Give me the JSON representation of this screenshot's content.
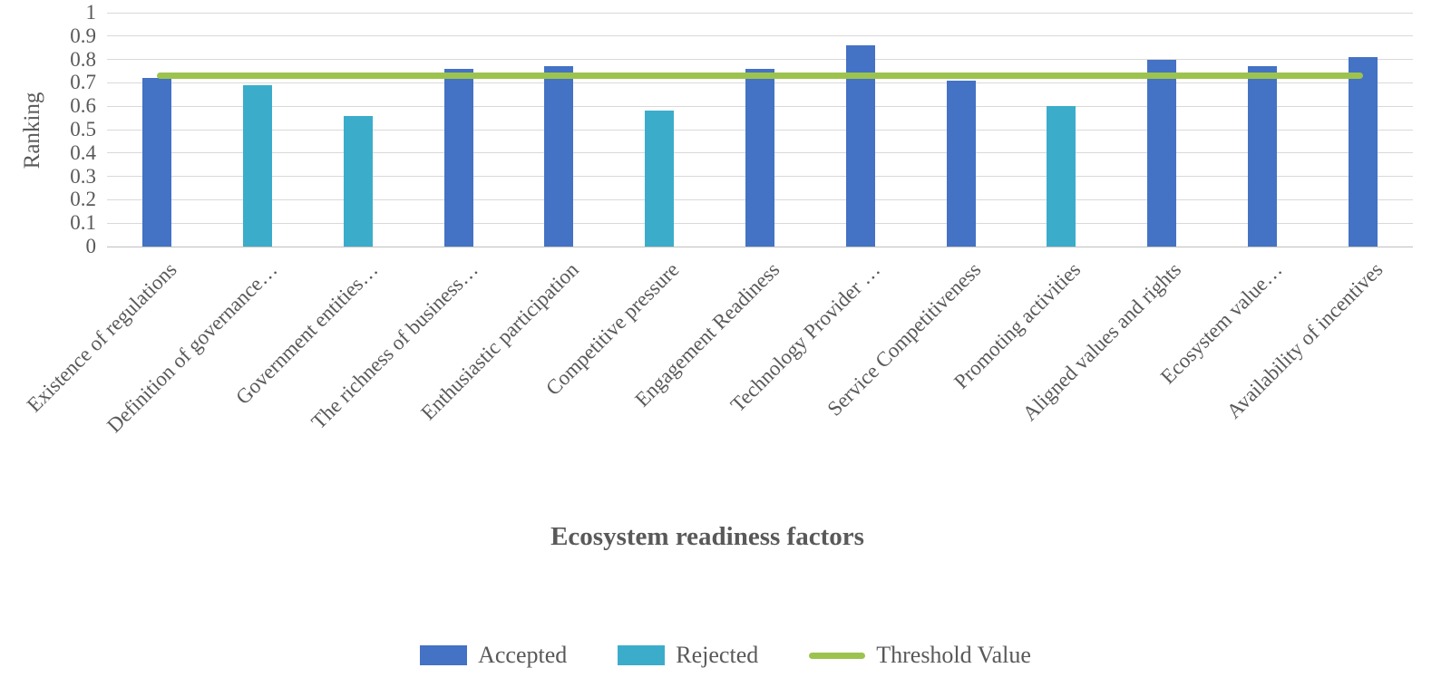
{
  "chart_data": {
    "type": "bar",
    "title": "",
    "xlabel": "Ecosystem readiness factors",
    "ylabel": "Ranking",
    "ylim": [
      0,
      1
    ],
    "ytick_step": 0.1,
    "grid": "horizontal",
    "legend_position": "bottom",
    "categories": [
      "Existence of regulations",
      "Definition of governance…",
      "Government entities…",
      "The richness of business…",
      "Enthusiastic participation",
      "Competitive pressure",
      "Engagement Readiness",
      "Technology Provider …",
      "Service Competitiveness",
      "Promoting activities",
      "Aligned values and rights",
      "Ecosystem value…",
      "Availability of incentives"
    ],
    "values": [
      0.72,
      0.69,
      0.56,
      0.76,
      0.77,
      0.58,
      0.76,
      0.86,
      0.71,
      0.6,
      0.8,
      0.77,
      0.81
    ],
    "status": [
      "accepted",
      "rejected",
      "rejected",
      "accepted",
      "accepted",
      "rejected",
      "accepted",
      "accepted",
      "accepted",
      "rejected",
      "accepted",
      "accepted",
      "accepted"
    ],
    "series": [
      {
        "name": "Accepted",
        "color": "#4472c4"
      },
      {
        "name": "Rejected",
        "color": "#3badcb"
      }
    ],
    "threshold": {
      "name": "Threshold Value",
      "value": 0.73,
      "color": "#9cc34e"
    }
  },
  "legend": {
    "items": [
      {
        "label": "Accepted",
        "swatch": "rect",
        "color": "#4472c4"
      },
      {
        "label": "Rejected",
        "swatch": "rect",
        "color": "#3badcb"
      },
      {
        "label": "Threshold Value",
        "swatch": "line",
        "color": "#9cc34e"
      }
    ]
  }
}
